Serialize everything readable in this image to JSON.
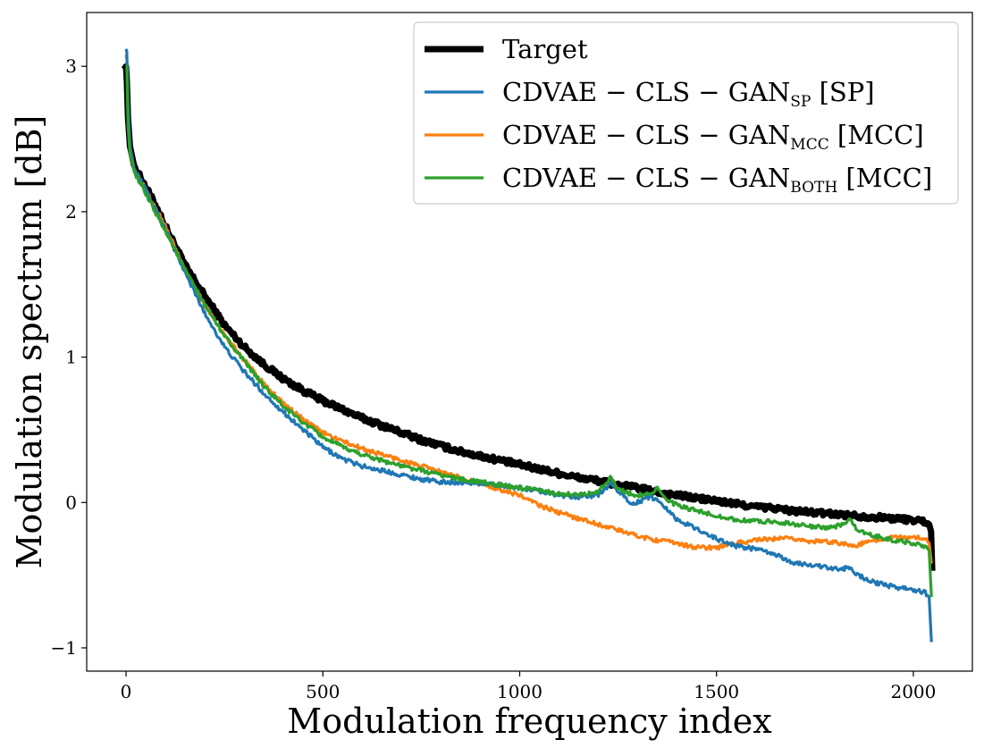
{
  "chart_data": {
    "type": "line",
    "title": "",
    "xlabel": "Modulation frequency index",
    "ylabel": "Modulation spectrum [dB]",
    "xlim": [
      -100,
      2150
    ],
    "ylim": [
      -1.16,
      3.37
    ],
    "xticks": [
      0,
      500,
      1000,
      1500,
      2000
    ],
    "yticks": [
      -1,
      0,
      1,
      2,
      3
    ],
    "xtick_labels": [
      "0",
      "500",
      "1000",
      "1500",
      "2000"
    ],
    "ytick_labels": [
      "−1",
      "0",
      "1",
      "2",
      "3"
    ],
    "grid": false,
    "legend_position": "top-right",
    "series": [
      {
        "name": "Target",
        "legend_main": "Target",
        "legend_sub": "",
        "legend_tail": "",
        "color": "#000000",
        "noise": 0.018,
        "points": [
          [
            -5,
            2.98
          ],
          [
            0,
            3.0
          ],
          [
            2,
            2.9
          ],
          [
            5,
            2.65
          ],
          [
            10,
            2.45
          ],
          [
            20,
            2.32
          ],
          [
            40,
            2.22
          ],
          [
            60,
            2.12
          ],
          [
            80,
            2.02
          ],
          [
            100,
            1.9
          ],
          [
            150,
            1.63
          ],
          [
            200,
            1.42
          ],
          [
            250,
            1.22
          ],
          [
            300,
            1.07
          ],
          [
            350,
            0.95
          ],
          [
            400,
            0.85
          ],
          [
            450,
            0.77
          ],
          [
            500,
            0.7
          ],
          [
            550,
            0.64
          ],
          [
            600,
            0.58
          ],
          [
            650,
            0.53
          ],
          [
            700,
            0.48
          ],
          [
            750,
            0.43
          ],
          [
            800,
            0.39
          ],
          [
            850,
            0.35
          ],
          [
            900,
            0.32
          ],
          [
            950,
            0.29
          ],
          [
            1000,
            0.26
          ],
          [
            1050,
            0.23
          ],
          [
            1100,
            0.2
          ],
          [
            1150,
            0.17
          ],
          [
            1200,
            0.15
          ],
          [
            1250,
            0.12
          ],
          [
            1300,
            0.1
          ],
          [
            1350,
            0.07
          ],
          [
            1400,
            0.05
          ],
          [
            1450,
            0.03
          ],
          [
            1500,
            0.01
          ],
          [
            1550,
            -0.01
          ],
          [
            1600,
            -0.03
          ],
          [
            1650,
            -0.04
          ],
          [
            1700,
            -0.06
          ],
          [
            1750,
            -0.07
          ],
          [
            1800,
            -0.08
          ],
          [
            1850,
            -0.09
          ],
          [
            1900,
            -0.1
          ],
          [
            1950,
            -0.11
          ],
          [
            2000,
            -0.12
          ],
          [
            2030,
            -0.13
          ],
          [
            2040,
            -0.15
          ],
          [
            2045,
            -0.2
          ],
          [
            2048,
            -0.47
          ]
        ]
      },
      {
        "name": "CDVAE-CLS-GAN_SP [SP]",
        "legend_main": "CDVAE − CLS − GAN",
        "legend_sub": "SP",
        "legend_tail": " [SP]",
        "color": "#1f77b4",
        "noise": 0.015,
        "points": [
          [
            0,
            3.12
          ],
          [
            2,
            3.1
          ],
          [
            5,
            2.75
          ],
          [
            10,
            2.45
          ],
          [
            20,
            2.3
          ],
          [
            50,
            2.15
          ],
          [
            100,
            1.88
          ],
          [
            150,
            1.58
          ],
          [
            200,
            1.3
          ],
          [
            250,
            1.07
          ],
          [
            300,
            0.9
          ],
          [
            350,
            0.75
          ],
          [
            400,
            0.62
          ],
          [
            450,
            0.5
          ],
          [
            500,
            0.38
          ],
          [
            550,
            0.3
          ],
          [
            600,
            0.25
          ],
          [
            650,
            0.22
          ],
          [
            700,
            0.19
          ],
          [
            750,
            0.16
          ],
          [
            800,
            0.14
          ],
          [
            850,
            0.14
          ],
          [
            900,
            0.13
          ],
          [
            950,
            0.12
          ],
          [
            1000,
            0.1
          ],
          [
            1050,
            0.08
          ],
          [
            1100,
            0.05
          ],
          [
            1150,
            0.04
          ],
          [
            1200,
            0.05
          ],
          [
            1230,
            0.13
          ],
          [
            1250,
            0.08
          ],
          [
            1280,
            0.0
          ],
          [
            1300,
            0.0
          ],
          [
            1330,
            0.04
          ],
          [
            1360,
            0.0
          ],
          [
            1400,
            -0.12
          ],
          [
            1450,
            -0.18
          ],
          [
            1500,
            -0.25
          ],
          [
            1550,
            -0.3
          ],
          [
            1600,
            -0.32
          ],
          [
            1650,
            -0.36
          ],
          [
            1700,
            -0.42
          ],
          [
            1750,
            -0.43
          ],
          [
            1800,
            -0.46
          ],
          [
            1840,
            -0.45
          ],
          [
            1860,
            -0.5
          ],
          [
            1900,
            -0.55
          ],
          [
            1950,
            -0.58
          ],
          [
            2000,
            -0.6
          ],
          [
            2030,
            -0.62
          ],
          [
            2040,
            -0.65
          ],
          [
            2046,
            -0.96
          ]
        ]
      },
      {
        "name": "CDVAE-CLS-GAN_MCC [MCC]",
        "legend_main": "CDVAE − CLS − GAN",
        "legend_sub": "MCC",
        "legend_tail": " [MCC]",
        "color": "#ff7f0e",
        "noise": 0.015,
        "points": [
          [
            0,
            3.08
          ],
          [
            2,
            3.05
          ],
          [
            5,
            2.7
          ],
          [
            10,
            2.45
          ],
          [
            20,
            2.3
          ],
          [
            50,
            2.15
          ],
          [
            100,
            1.9
          ],
          [
            150,
            1.6
          ],
          [
            200,
            1.36
          ],
          [
            250,
            1.15
          ],
          [
            300,
            0.98
          ],
          [
            350,
            0.82
          ],
          [
            400,
            0.68
          ],
          [
            450,
            0.57
          ],
          [
            500,
            0.48
          ],
          [
            550,
            0.42
          ],
          [
            600,
            0.37
          ],
          [
            650,
            0.33
          ],
          [
            700,
            0.29
          ],
          [
            750,
            0.25
          ],
          [
            800,
            0.21
          ],
          [
            850,
            0.17
          ],
          [
            900,
            0.13
          ],
          [
            950,
            0.09
          ],
          [
            1000,
            0.05
          ],
          [
            1050,
            -0.02
          ],
          [
            1100,
            -0.07
          ],
          [
            1150,
            -0.11
          ],
          [
            1200,
            -0.15
          ],
          [
            1250,
            -0.19
          ],
          [
            1300,
            -0.23
          ],
          [
            1350,
            -0.26
          ],
          [
            1400,
            -0.28
          ],
          [
            1450,
            -0.31
          ],
          [
            1500,
            -0.31
          ],
          [
            1550,
            -0.28
          ],
          [
            1600,
            -0.26
          ],
          [
            1650,
            -0.25
          ],
          [
            1700,
            -0.25
          ],
          [
            1750,
            -0.27
          ],
          [
            1800,
            -0.27
          ],
          [
            1850,
            -0.3
          ],
          [
            1900,
            -0.26
          ],
          [
            1950,
            -0.24
          ],
          [
            2000,
            -0.24
          ],
          [
            2030,
            -0.25
          ],
          [
            2040,
            -0.28
          ],
          [
            2046,
            -0.42
          ]
        ]
      },
      {
        "name": "CDVAE-CLS-GAN_BOTH [MCC]",
        "legend_main": "CDVAE − CLS − GAN",
        "legend_sub": "BOTH",
        "legend_tail": " [MCC]",
        "color": "#2ca02c",
        "noise": 0.015,
        "points": [
          [
            0,
            3.0
          ],
          [
            2,
            3.0
          ],
          [
            5,
            2.6
          ],
          [
            10,
            2.4
          ],
          [
            20,
            2.28
          ],
          [
            50,
            2.12
          ],
          [
            100,
            1.87
          ],
          [
            150,
            1.6
          ],
          [
            200,
            1.36
          ],
          [
            250,
            1.15
          ],
          [
            300,
            0.97
          ],
          [
            350,
            0.8
          ],
          [
            400,
            0.66
          ],
          [
            450,
            0.55
          ],
          [
            500,
            0.45
          ],
          [
            550,
            0.38
          ],
          [
            600,
            0.33
          ],
          [
            650,
            0.29
          ],
          [
            700,
            0.25
          ],
          [
            750,
            0.22
          ],
          [
            800,
            0.19
          ],
          [
            850,
            0.16
          ],
          [
            900,
            0.14
          ],
          [
            950,
            0.12
          ],
          [
            1000,
            0.1
          ],
          [
            1050,
            0.08
          ],
          [
            1100,
            0.06
          ],
          [
            1150,
            0.05
          ],
          [
            1200,
            0.07
          ],
          [
            1230,
            0.17
          ],
          [
            1250,
            0.1
          ],
          [
            1280,
            0.06
          ],
          [
            1300,
            0.05
          ],
          [
            1330,
            0.06
          ],
          [
            1350,
            0.1
          ],
          [
            1370,
            0.02
          ],
          [
            1400,
            -0.02
          ],
          [
            1450,
            -0.06
          ],
          [
            1500,
            -0.09
          ],
          [
            1550,
            -0.12
          ],
          [
            1600,
            -0.13
          ],
          [
            1650,
            -0.13
          ],
          [
            1700,
            -0.15
          ],
          [
            1750,
            -0.17
          ],
          [
            1800,
            -0.17
          ],
          [
            1840,
            -0.12
          ],
          [
            1860,
            -0.2
          ],
          [
            1900,
            -0.23
          ],
          [
            1950,
            -0.26
          ],
          [
            2000,
            -0.28
          ],
          [
            2030,
            -0.3
          ],
          [
            2040,
            -0.33
          ],
          [
            2046,
            -0.65
          ]
        ]
      }
    ]
  }
}
